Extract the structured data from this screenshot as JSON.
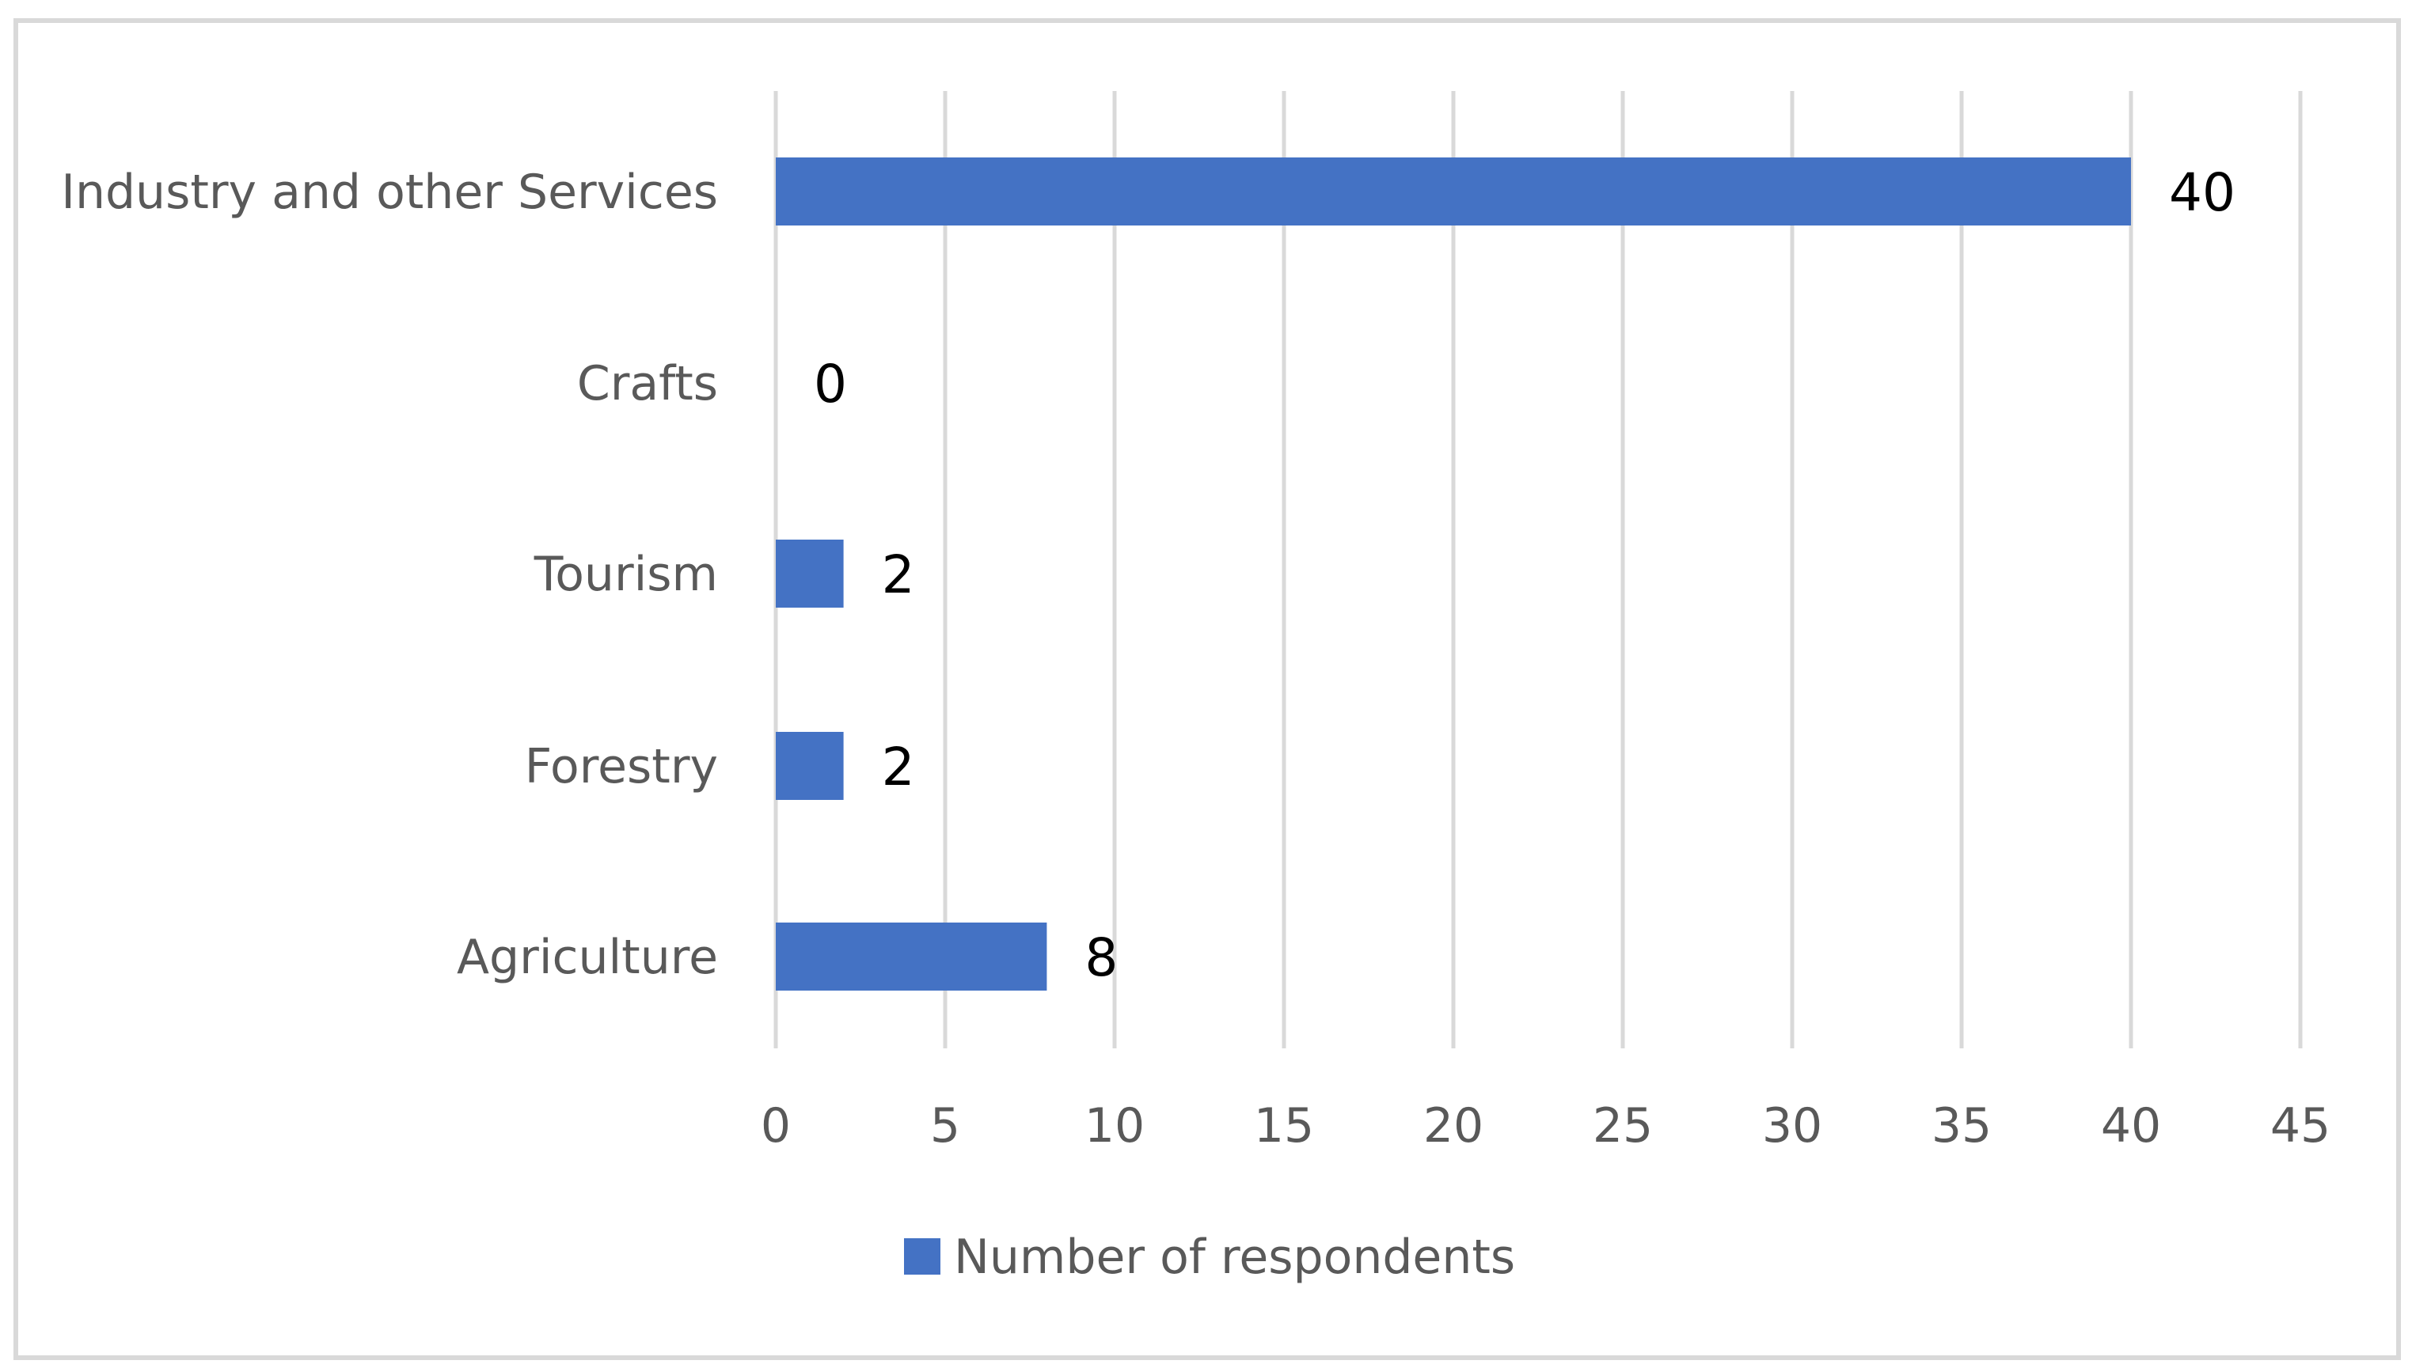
{
  "chart_data": {
    "type": "bar",
    "orientation": "horizontal",
    "title": "",
    "xlabel": "",
    "ylabel": "",
    "categories": [
      "Industry and other Services",
      "Crafts",
      "Tourism",
      "Forestry",
      "Agriculture"
    ],
    "series": [
      {
        "name": "Number of respondents",
        "values": [
          40,
          0,
          2,
          2,
          8
        ],
        "color": "#4472C4"
      }
    ],
    "xlim": [
      0,
      45
    ],
    "xticks": [
      0,
      5,
      10,
      15,
      20,
      25,
      30,
      35,
      40,
      45
    ],
    "grid": "vertical",
    "legend_position": "bottom",
    "data_labels": true
  },
  "colors": {
    "bar": "#4472C4",
    "gridline": "#D9D9D9",
    "border": "#D9D9D9",
    "axis_text": "#595959",
    "data_label": "#000000"
  }
}
